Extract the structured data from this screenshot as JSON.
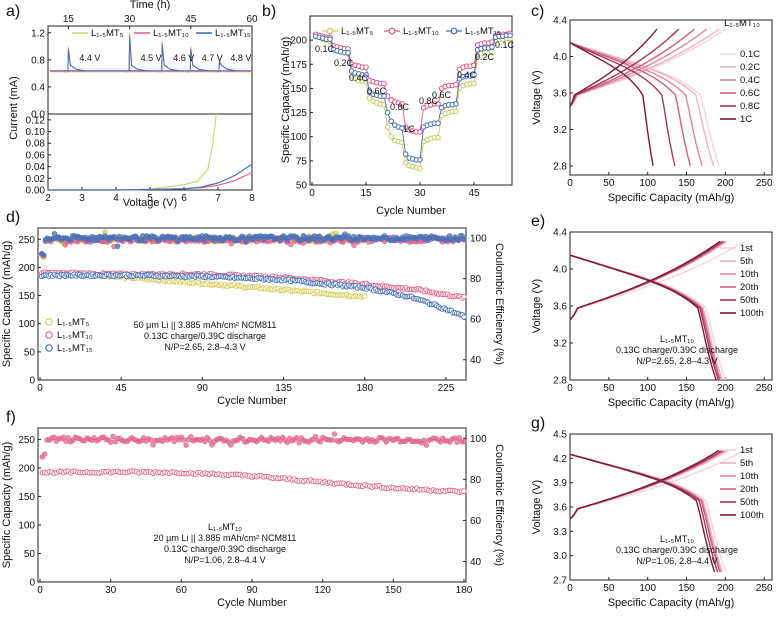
{
  "chart_data": [
    {
      "id": "a",
      "panel": "a)",
      "type": "line",
      "xlabel": "Voltage (V)",
      "ylabel": "Current (mA)",
      "top_axis_label": "Time (h)",
      "top_ticks": [
        "15",
        "30",
        "45",
        "60"
      ],
      "xlim": [
        2,
        8
      ],
      "x_ticks": [
        "2",
        "3",
        "4",
        "5",
        "6",
        "7",
        "8"
      ],
      "upper_ylim": [
        0,
        1.3
      ],
      "upper_y_ticks": [
        "0.0",
        "0.4",
        "0.8",
        "1.2"
      ],
      "lower_ylim": [
        0,
        0.13
      ],
      "lower_y_ticks": [
        "0.00",
        "0.02",
        "0.04",
        "0.06",
        "0.08",
        "0.10",
        "0.12"
      ],
      "hold_labels": [
        "4.4 V",
        "4.5 V",
        "4.6 V",
        "4.7 V",
        "4.8 V"
      ],
      "legend": [
        "L₁.₅MT₅",
        "L₁.₅MT₁₀",
        "L₁.₅MT₁₅"
      ],
      "series": [
        {
          "name": "L₁.₅MT₅",
          "color": "#d4d47a",
          "x": [
            2,
            3,
            4,
            5,
            5.3,
            5.6,
            6,
            6.4,
            6.7,
            6.85,
            6.95
          ],
          "y": [
            0,
            0,
            0,
            0.001,
            0.004,
            0.006,
            0.009,
            0.015,
            0.035,
            0.08,
            0.13
          ]
        },
        {
          "name": "L₁.₅MT₁₀",
          "color": "#e0668f",
          "x": [
            2,
            3,
            4,
            5,
            6,
            6.5,
            7,
            7.5,
            8
          ],
          "y": [
            0,
            0,
            0,
            0.001,
            0.002,
            0.004,
            0.008,
            0.016,
            0.03
          ]
        },
        {
          "name": "L₁.₅MT₁₅",
          "color": "#4a72b8",
          "x": [
            2,
            3,
            4,
            5,
            6,
            6.5,
            7,
            7.5,
            8
          ],
          "y": [
            0,
            0,
            0,
            0.001,
            0.002,
            0.005,
            0.012,
            0.025,
            0.044
          ]
        }
      ],
      "spikes_h": [
        15,
        30,
        38,
        45,
        52
      ],
      "spike_heights": [
        1.0,
        1.2,
        1.08,
        1.0,
        0.82
      ]
    },
    {
      "id": "b",
      "panel": "b)",
      "type": "scatter",
      "xlabel": "Cycle Number",
      "ylabel": "Specific Capacity (mAh/g)",
      "xlim": [
        0,
        55
      ],
      "ylim": [
        50,
        225
      ],
      "x_ticks": [
        0,
        15,
        30,
        45
      ],
      "y_ticks": [
        50,
        75,
        100,
        125,
        150,
        175,
        200
      ],
      "legend": [
        "L₁.₅MT₅",
        "L₁.₅MT₁₀",
        "L₁.₅MT₁₅"
      ],
      "rate_labels": [
        "0.1C",
        "0.2C",
        "0.4C",
        "0.6C",
        "0.8C",
        "1C",
        "0.8C",
        "0.6C",
        "0.4C",
        "0.2C",
        "0.1C"
      ],
      "series": [
        {
          "name": "L₁.₅MT₅",
          "color": "#c9c95a",
          "values": [
            205,
            203,
            201,
            200,
            199,
            193,
            190,
            188,
            187,
            186,
            163,
            160,
            158,
            157,
            156,
            140,
            137,
            135,
            134,
            133,
            110,
            100,
            96,
            95,
            94,
            73,
            70,
            69,
            68,
            67,
            95,
            97,
            98,
            99,
            99,
            122,
            124,
            125,
            126,
            126,
            151,
            153,
            154,
            155,
            155,
            185,
            186,
            187,
            187,
            188,
            200,
            201,
            201,
            202,
            202
          ]
        },
        {
          "name": "L₁.₅MT₁₀",
          "color": "#d85586",
          "values": [
            206,
            205,
            204,
            203,
            203,
            194,
            193,
            192,
            191,
            191,
            175,
            174,
            173,
            172,
            172,
            158,
            157,
            156,
            155,
            155,
            142,
            138,
            136,
            135,
            134,
            110,
            107,
            106,
            105,
            105,
            130,
            132,
            133,
            134,
            134,
            150,
            152,
            153,
            153,
            154,
            170,
            172,
            173,
            173,
            174,
            195,
            196,
            197,
            197,
            198,
            205,
            206,
            206,
            206,
            207
          ]
        },
        {
          "name": "L₁.₅MT₁₅",
          "color": "#3f6cb8",
          "values": [
            204,
            203,
            202,
            201,
            201,
            190,
            189,
            188,
            187,
            187,
            168,
            166,
            165,
            164,
            164,
            146,
            144,
            143,
            142,
            142,
            125,
            116,
            112,
            110,
            109,
            82,
            78,
            77,
            76,
            76,
            110,
            112,
            113,
            114,
            114,
            130,
            132,
            133,
            133,
            134,
            160,
            162,
            163,
            163,
            164,
            190,
            191,
            192,
            192,
            193,
            203,
            204,
            204,
            205,
            205
          ]
        }
      ]
    },
    {
      "id": "c",
      "panel": "c)",
      "type": "line",
      "xlabel": "Specific Capacity (mAh/g)",
      "ylabel": "Voltage (V)",
      "title": "L₁.₅MT₁₀",
      "xlim": [
        0,
        260
      ],
      "ylim": [
        2.7,
        4.4
      ],
      "x_ticks": [
        0,
        50,
        100,
        150,
        200,
        250
      ],
      "y_ticks": [
        "2.8",
        "3.2",
        "3.6",
        "4.0",
        "4.4"
      ],
      "legend": [
        "0.1C",
        "0.2C",
        "0.4C",
        "0.6C",
        "0.8C",
        "1C"
      ],
      "colors": [
        "#f3d3de",
        "#ecb2c7",
        "#df86a6",
        "#cd5f87",
        "#a8365f",
        "#7a1a3c"
      ],
      "discharge_end": [
        192,
        185,
        170,
        155,
        135,
        107
      ],
      "charge_end": [
        200,
        192,
        176,
        160,
        140,
        112
      ]
    },
    {
      "id": "d",
      "panel": "d)",
      "type": "scatter",
      "xlabel": "Cycle Number",
      "ylabel": "Specific Capacity (mAh/g)",
      "ylabel_right": "Coulombic Efficiency (%)",
      "xlim": [
        0,
        235
      ],
      "ylim": [
        0,
        270
      ],
      "y2lim": [
        30,
        105
      ],
      "x_ticks": [
        0,
        45,
        90,
        135,
        180,
        225
      ],
      "y_ticks": [
        0,
        50,
        100,
        150,
        200,
        250
      ],
      "y2_ticks": [
        40,
        60,
        80,
        100
      ],
      "annotation": [
        "50 μm Li || 3.885 mAh/cm² NCM811",
        "0.13C charge/0.39C discharge",
        "N/P=2.65, 2.8–4.3 V"
      ],
      "legend": [
        "L₁.₅MT₅",
        "L₁.₅MT₁₀",
        "L₁.₅MT₁₅"
      ],
      "series": [
        {
          "name": "L₁.₅MT₅",
          "color": "#d4cc55",
          "cap": [
            [
              1,
              188
            ],
            [
              20,
              190
            ],
            [
              45,
              183
            ],
            [
              90,
              172
            ],
            [
              135,
              160
            ],
            [
              180,
              148
            ]
          ],
          "ce": 99.5,
          "end": 180
        },
        {
          "name": "L₁.₅MT₁₀",
          "color": "#e0668f",
          "cap": [
            [
              1,
              190
            ],
            [
              45,
              188
            ],
            [
              90,
              188
            ],
            [
              135,
              182
            ],
            [
              180,
              170
            ],
            [
              210,
              160
            ],
            [
              235,
              146
            ]
          ],
          "ce": 99.2,
          "end": 235
        },
        {
          "name": "L₁.₅MT₁₅",
          "color": "#4a72b8",
          "cap": [
            [
              1,
              186
            ],
            [
              45,
              186
            ],
            [
              90,
              184
            ],
            [
              135,
              178
            ],
            [
              180,
              164
            ],
            [
              205,
              148
            ],
            [
              220,
              132
            ],
            [
              235,
              113
            ]
          ],
          "ce": 100,
          "end": 235
        }
      ]
    },
    {
      "id": "e",
      "panel": "e)",
      "type": "line",
      "xlabel": "Specific Capacity (mAh/g)",
      "ylabel": "Voltage (V)",
      "xlim": [
        0,
        260
      ],
      "ylim": [
        2.8,
        4.4
      ],
      "x_ticks": [
        0,
        50,
        100,
        150,
        200,
        250
      ],
      "y_ticks": [
        "2.8",
        "3.2",
        "3.6",
        "4.0",
        "4.4"
      ],
      "annotation": [
        "L₁.₅MT₁₀",
        "0.13C charge/0.39C discharge",
        "N/P=2.65, 2.8–4.3 V"
      ],
      "legend": [
        "1st",
        "5th",
        "10th",
        "20th",
        "50th",
        "100th"
      ],
      "colors": [
        "#f3d3de",
        "#ecb2c7",
        "#df86a6",
        "#cd5f87",
        "#a8365f",
        "#7a1a3c"
      ],
      "discharge_end": [
        200,
        196,
        194,
        193,
        191,
        188
      ],
      "charge_end": [
        225,
        202,
        200,
        198,
        196,
        193
      ],
      "vmin": 2.8,
      "vmax": 4.3
    },
    {
      "id": "f",
      "panel": "f)",
      "type": "scatter",
      "xlabel": "Cycle Number",
      "ylabel": "Specific Capacity (mAh/g)",
      "ylabel_right": "Coulombic Efficiency (%)",
      "xlim": [
        0,
        180
      ],
      "ylim": [
        0,
        270
      ],
      "y2lim": [
        30,
        105
      ],
      "x_ticks": [
        0,
        30,
        60,
        90,
        120,
        150,
        180
      ],
      "y_ticks": [
        0,
        50,
        100,
        150,
        200,
        250
      ],
      "y2_ticks": [
        40,
        60,
        80,
        100
      ],
      "annotation": [
        "L₁.₅MT₁₀",
        "20 μm Li || 3.885 mAh/cm² NCM811",
        "0.13C charge/0.39C discharge",
        "N/P=1.06, 2.8–4.4 V"
      ],
      "series": [
        {
          "name": "L₁.₅MT₁₀",
          "color": "#e0668f",
          "cap": [
            [
              1,
              192
            ],
            [
              30,
              193
            ],
            [
              60,
              192
            ],
            [
              90,
              186
            ],
            [
              120,
              175
            ],
            [
              150,
              165
            ],
            [
              180,
              158
            ]
          ],
          "ce": 99.3,
          "end": 180
        }
      ]
    },
    {
      "id": "g",
      "panel": "g)",
      "type": "line",
      "xlabel": "Specific Capacity (mAh/g)",
      "ylabel": "Voltage (V)",
      "xlim": [
        0,
        260
      ],
      "ylim": [
        2.7,
        4.5
      ],
      "x_ticks": [
        0,
        50,
        100,
        150,
        200,
        250
      ],
      "y_ticks": [
        "2.7",
        "3.0",
        "3.3",
        "3.6",
        "3.9",
        "4.2",
        "4.5"
      ],
      "annotation": [
        "L₁.₅MT₁₀",
        "0.13C charge/0.39C discharge",
        "N/P=1.06, 2.8–4.4 V"
      ],
      "legend": [
        "1st",
        "5th",
        "10th",
        "20th",
        "50th",
        "100th"
      ],
      "colors": [
        "#f3d3de",
        "#ecb2c7",
        "#df86a6",
        "#cd5f87",
        "#a8365f",
        "#7a1a3c"
      ],
      "discharge_end": [
        200,
        196,
        194,
        193,
        190,
        186
      ],
      "charge_end": [
        225,
        204,
        200,
        198,
        196,
        192
      ],
      "vmin": 2.8,
      "vmax": 4.4
    }
  ]
}
